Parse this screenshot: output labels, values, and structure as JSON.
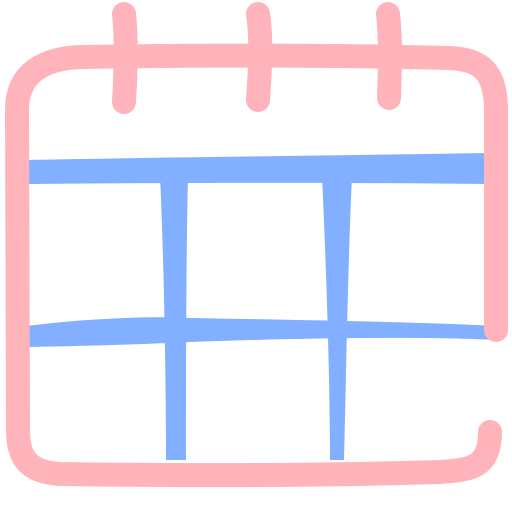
{
  "icon": {
    "name": "calendar-icon",
    "style": "hand-drawn",
    "colors": {
      "frame": "#FFB3BA",
      "grid": "#82AFFF",
      "background": "#FFFFFF"
    },
    "binder_rings": 3,
    "grid_rows": 2,
    "grid_columns": 3
  }
}
